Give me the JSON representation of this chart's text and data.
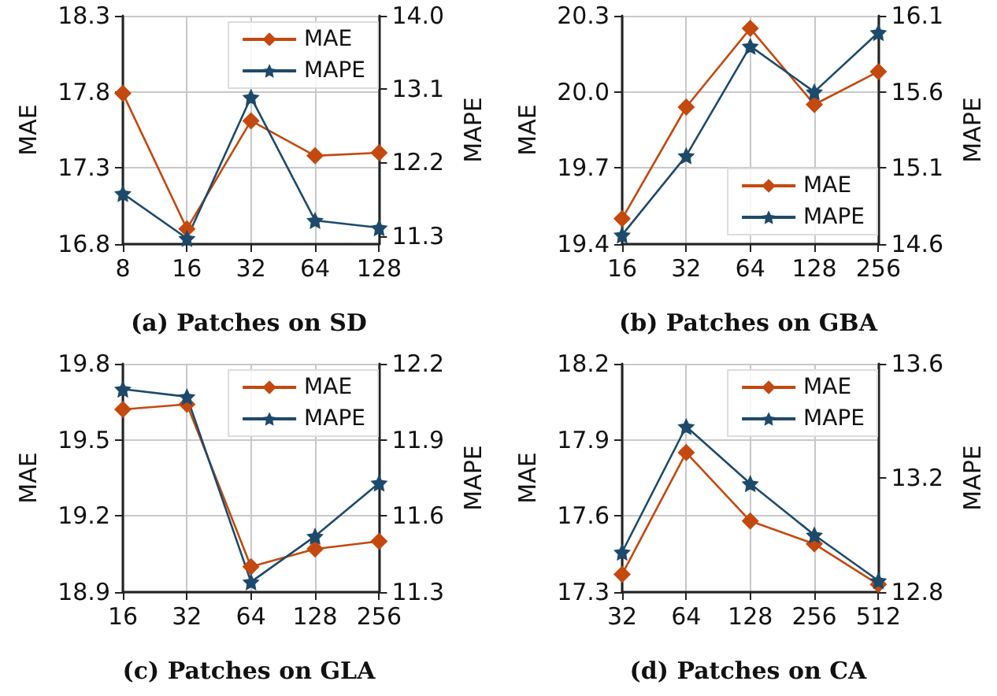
{
  "chart_data": [
    {
      "type": "line",
      "title": "(a) Patches on SD",
      "xlabel": null,
      "ylabel": "MAE",
      "y2label": "MAPE",
      "categories": [
        "8",
        "16",
        "32",
        "64",
        "128"
      ],
      "series": [
        {
          "name": "MAE",
          "color": "#c4490f",
          "marker": "diamond",
          "values": [
            17.79,
            16.9,
            17.61,
            17.38,
            17.4
          ]
        },
        {
          "name": "MAPE",
          "color": "#1d4a6b",
          "marker": "star",
          "axis": "y2",
          "values": [
            11.82,
            11.27,
            13.0,
            11.49,
            11.4
          ]
        }
      ],
      "ylim": [
        16.8,
        18.3
      ],
      "yticks": [
        16.8,
        17.3,
        17.8,
        18.3
      ],
      "y2lim": [
        11.2,
        14.0
      ],
      "y2ticks": [
        11.3,
        12.2,
        13.1,
        {
          "value": 14,
          "label": "14.0"
        }
      ],
      "grid": true,
      "legend": "top right"
    },
    {
      "type": "line",
      "title": "(b) Patches on GBA",
      "ylabel": "MAE",
      "y2label": "MAPE",
      "categories": [
        "16",
        "32",
        "64",
        "128",
        "256"
      ],
      "series": [
        {
          "name": "MAE",
          "color": "#c4490f",
          "marker": "diamond",
          "values": [
            19.5,
            19.94,
            20.25,
            19.95,
            20.08
          ]
        },
        {
          "name": "MAPE",
          "color": "#1d4a6b",
          "marker": "star",
          "axis": "y2",
          "values": [
            14.66,
            15.18,
            15.9,
            15.6,
            15.99
          ]
        }
      ],
      "ylim": [
        19.4,
        20.3
      ],
      "yticks": [
        19.4,
        19.7,
        {
          "value": 20,
          "label": "20.0"
        },
        20.3
      ],
      "y2lim": [
        14.6,
        16.1
      ],
      "y2ticks": [
        14.6,
        15.1,
        15.6,
        16.1
      ],
      "grid": true,
      "legend": "bottom right"
    },
    {
      "type": "line",
      "title": "(c) Patches on GLA",
      "ylabel": "MAE",
      "y2label": "MAPE",
      "categories": [
        "16",
        "32",
        "64",
        "128",
        "256"
      ],
      "series": [
        {
          "name": "MAE",
          "color": "#c4490f",
          "marker": "diamond",
          "values": [
            19.62,
            19.64,
            19.0,
            19.07,
            19.1
          ]
        },
        {
          "name": "MAPE",
          "color": "#1d4a6b",
          "marker": "star",
          "axis": "y2",
          "values": [
            12.1,
            12.07,
            11.34,
            11.52,
            11.73
          ]
        }
      ],
      "ylim": [
        18.9,
        19.8
      ],
      "yticks": [
        18.9,
        19.2,
        19.5,
        19.8
      ],
      "y2lim": [
        11.3,
        12.2
      ],
      "y2ticks": [
        11.3,
        11.6,
        11.9,
        12.2
      ],
      "grid": true,
      "legend": "top right"
    },
    {
      "type": "line",
      "title": "(d) Patches on CA",
      "ylabel": "MAE",
      "y2label": "MAPE",
      "categories": [
        "32",
        "64",
        "128",
        "256",
        "512"
      ],
      "series": [
        {
          "name": "MAE",
          "color": "#c4490f",
          "marker": "diamond",
          "values": [
            17.37,
            17.85,
            17.58,
            17.49,
            17.33
          ]
        },
        {
          "name": "MAPE",
          "color": "#1d4a6b",
          "marker": "star",
          "axis": "y2",
          "values": [
            12.94,
            13.38,
            13.18,
            13.0,
            12.84
          ]
        }
      ],
      "ylim": [
        17.3,
        18.2
      ],
      "yticks": [
        17.3,
        17.6,
        17.9,
        18.2
      ],
      "y2lim": [
        12.8,
        13.6
      ],
      "y2ticks": [
        12.8,
        13.2,
        13.6
      ],
      "grid": true,
      "legend": "top right"
    }
  ]
}
